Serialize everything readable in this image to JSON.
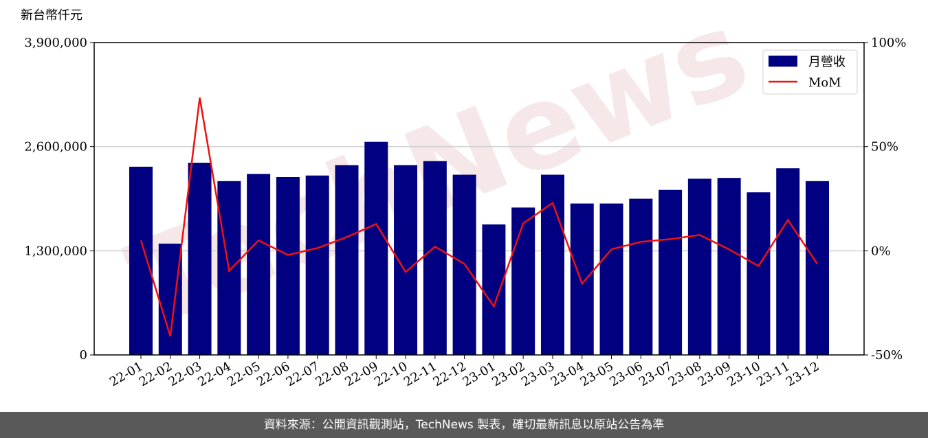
{
  "chart_data": {
    "type": "bar_line",
    "y_label": "新台幣仟元",
    "watermark": "TechNews",
    "source": "資料來源：公開資訊觀測站，TechNews 製表，確切最新訊息以原站公告為準",
    "categories": [
      "22-01",
      "22-02",
      "22-03",
      "22-04",
      "22-05",
      "22-06",
      "22-07",
      "22-08",
      "22-09",
      "22-10",
      "22-11",
      "22-12",
      "23-01",
      "23-02",
      "23-03",
      "23-04",
      "23-05",
      "23-06",
      "23-07",
      "23-08",
      "23-09",
      "23-10",
      "23-11",
      "23-12"
    ],
    "series": [
      {
        "name": "月營收",
        "color": "#000080",
        "values": [
          2350000,
          1390000,
          2400000,
          2170000,
          2260000,
          2220000,
          2240000,
          2370000,
          2660000,
          2370000,
          2420000,
          2250000,
          1630000,
          1840000,
          2250000,
          1890000,
          1890000,
          1950000,
          2060000,
          2200000,
          2210000,
          2030000,
          2330000,
          2170000
        ]
      },
      {
        "name": "MoM",
        "color": "#ee1111",
        "axis": "y2",
        "values": [
          5,
          -41,
          73.5,
          -9.6,
          5,
          -2,
          1.3,
          6.6,
          12.9,
          -10.2,
          2,
          -6.3,
          -26.7,
          13.2,
          23,
          -15.8,
          0.7,
          4.3,
          5.6,
          7.6,
          0.7,
          -7.3,
          14.8,
          -6.3
        ]
      }
    ],
    "ylim": [
      0,
      3900000
    ],
    "yticks": [
      0,
      {
        "value": 1300000,
        "label": "1,300,000"
      },
      {
        "value": 2600000,
        "label": "2,600,000"
      },
      {
        "value": 3900000,
        "label": "3,900,000"
      }
    ],
    "y2lim": [
      -50,
      100
    ],
    "y2ticks": [
      {
        "value": -50,
        "label": "-50%"
      },
      {
        "value": 0,
        "label": "0%"
      },
      {
        "value": 50,
        "label": "50%"
      },
      {
        "value": 100,
        "label": "100%"
      }
    ],
    "grid": true,
    "legend": "upper right"
  }
}
